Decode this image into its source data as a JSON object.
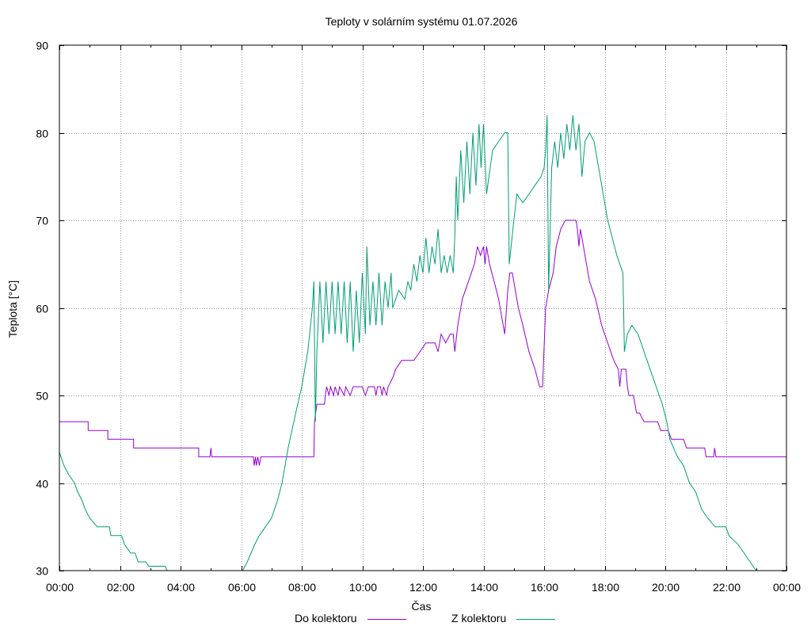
{
  "chart_data": {
    "type": "line",
    "title": "Teploty v solárním systému 01.07.2026",
    "xlabel": "Čas",
    "ylabel": "Teplota [°C]",
    "xlim": [
      0,
      24
    ],
    "ylim": [
      30,
      90
    ],
    "x_tick_labels": [
      "00:00",
      "02:00",
      "04:00",
      "06:00",
      "08:00",
      "10:00",
      "12:00",
      "14:00",
      "16:00",
      "18:00",
      "20:00",
      "22:00",
      "00:00"
    ],
    "y_ticks": [
      30,
      40,
      50,
      60,
      70,
      80,
      90
    ],
    "grid": true,
    "legend_position": "bottom",
    "series": [
      {
        "name": "Do kolektoru",
        "color": "#9400d3",
        "points": [
          [
            0,
            47
          ],
          [
            0.95,
            47
          ],
          [
            0.95,
            46
          ],
          [
            1.6,
            46
          ],
          [
            1.6,
            45
          ],
          [
            2.45,
            45
          ],
          [
            2.45,
            44
          ],
          [
            4.6,
            44
          ],
          [
            4.6,
            43
          ],
          [
            4.97,
            43
          ],
          [
            5.0,
            44
          ],
          [
            5.03,
            43
          ],
          [
            6.4,
            43
          ],
          [
            6.43,
            42
          ],
          [
            6.47,
            43
          ],
          [
            6.5,
            42
          ],
          [
            6.55,
            43
          ],
          [
            6.6,
            42
          ],
          [
            6.65,
            43
          ],
          [
            8.4,
            43
          ],
          [
            8.42,
            47
          ],
          [
            8.5,
            49
          ],
          [
            8.75,
            49
          ],
          [
            8.78,
            50
          ],
          [
            8.82,
            51
          ],
          [
            8.9,
            50
          ],
          [
            8.95,
            51
          ],
          [
            9.05,
            50
          ],
          [
            9.1,
            51
          ],
          [
            9.2,
            50
          ],
          [
            9.25,
            51
          ],
          [
            9.4,
            50
          ],
          [
            9.45,
            51
          ],
          [
            9.6,
            50
          ],
          [
            9.7,
            51
          ],
          [
            10.0,
            51
          ],
          [
            10.1,
            50
          ],
          [
            10.2,
            51
          ],
          [
            10.4,
            51
          ],
          [
            10.45,
            50
          ],
          [
            10.5,
            51
          ],
          [
            10.6,
            51
          ],
          [
            10.65,
            50
          ],
          [
            10.7,
            51
          ],
          [
            10.8,
            50
          ],
          [
            10.85,
            51
          ],
          [
            11.0,
            52
          ],
          [
            11.1,
            53
          ],
          [
            11.3,
            54
          ],
          [
            11.7,
            54
          ],
          [
            11.9,
            55
          ],
          [
            12.1,
            56
          ],
          [
            12.4,
            56
          ],
          [
            12.5,
            55
          ],
          [
            12.6,
            57
          ],
          [
            12.75,
            56
          ],
          [
            12.9,
            57
          ],
          [
            13.0,
            57
          ],
          [
            13.05,
            55
          ],
          [
            13.15,
            58
          ],
          [
            13.3,
            61
          ],
          [
            13.5,
            63
          ],
          [
            13.7,
            65
          ],
          [
            13.8,
            67
          ],
          [
            13.9,
            66
          ],
          [
            14.0,
            67
          ],
          [
            14.05,
            65
          ],
          [
            14.1,
            67
          ],
          [
            14.2,
            65
          ],
          [
            14.35,
            63
          ],
          [
            14.5,
            61
          ],
          [
            14.6,
            59
          ],
          [
            14.7,
            57
          ],
          [
            14.8,
            62
          ],
          [
            14.87,
            64
          ],
          [
            14.95,
            64
          ],
          [
            15.05,
            62
          ],
          [
            15.15,
            60
          ],
          [
            15.3,
            58
          ],
          [
            15.5,
            55
          ],
          [
            15.6,
            54
          ],
          [
            15.7,
            53
          ],
          [
            15.85,
            51
          ],
          [
            15.95,
            51
          ],
          [
            16.05,
            60
          ],
          [
            16.15,
            62
          ],
          [
            16.3,
            64
          ],
          [
            16.4,
            67
          ],
          [
            16.55,
            69
          ],
          [
            16.7,
            70
          ],
          [
            17.05,
            70
          ],
          [
            17.1,
            69
          ],
          [
            17.15,
            67
          ],
          [
            17.2,
            69
          ],
          [
            17.25,
            68
          ],
          [
            17.35,
            66
          ],
          [
            17.5,
            63
          ],
          [
            17.7,
            61
          ],
          [
            17.9,
            58
          ],
          [
            18.1,
            56
          ],
          [
            18.3,
            54
          ],
          [
            18.45,
            53
          ],
          [
            18.5,
            51
          ],
          [
            18.55,
            53
          ],
          [
            18.7,
            53
          ],
          [
            18.75,
            51
          ],
          [
            18.8,
            50
          ],
          [
            18.95,
            50
          ],
          [
            19.05,
            48
          ],
          [
            19.15,
            48
          ],
          [
            19.3,
            47
          ],
          [
            19.75,
            47
          ],
          [
            19.85,
            46
          ],
          [
            20.1,
            46
          ],
          [
            20.2,
            45
          ],
          [
            20.6,
            45
          ],
          [
            20.7,
            44
          ],
          [
            21.3,
            44
          ],
          [
            21.35,
            43
          ],
          [
            21.6,
            43
          ],
          [
            21.63,
            44
          ],
          [
            21.67,
            43
          ],
          [
            24,
            43
          ]
        ]
      },
      {
        "name": "Z kolektoru",
        "color": "#009e73",
        "points": [
          [
            0,
            43.5
          ],
          [
            0.15,
            42
          ],
          [
            0.3,
            41
          ],
          [
            0.5,
            40
          ],
          [
            0.6,
            39
          ],
          [
            0.75,
            38
          ],
          [
            0.85,
            37
          ],
          [
            1.0,
            36
          ],
          [
            1.25,
            35
          ],
          [
            1.65,
            35
          ],
          [
            1.7,
            34
          ],
          [
            2.05,
            34
          ],
          [
            2.15,
            33
          ],
          [
            2.35,
            32
          ],
          [
            2.5,
            32
          ],
          [
            2.6,
            31
          ],
          [
            2.85,
            31
          ],
          [
            2.95,
            30.5
          ],
          [
            3.5,
            30.5
          ],
          [
            3.55,
            30
          ],
          [
            6.05,
            30
          ],
          [
            6.2,
            31
          ],
          [
            6.45,
            33
          ],
          [
            6.6,
            34
          ],
          [
            6.8,
            35
          ],
          [
            7.0,
            36
          ],
          [
            7.2,
            38
          ],
          [
            7.35,
            40
          ],
          [
            7.55,
            44
          ],
          [
            7.8,
            48
          ],
          [
            8.0,
            51
          ],
          [
            8.2,
            55
          ],
          [
            8.35,
            60
          ],
          [
            8.4,
            63
          ],
          [
            8.45,
            47
          ],
          [
            8.5,
            55
          ],
          [
            8.6,
            63
          ],
          [
            8.7,
            56
          ],
          [
            8.8,
            63
          ],
          [
            8.9,
            57
          ],
          [
            9.0,
            63
          ],
          [
            9.1,
            57
          ],
          [
            9.2,
            63
          ],
          [
            9.3,
            57
          ],
          [
            9.4,
            63
          ],
          [
            9.5,
            56
          ],
          [
            9.6,
            63
          ],
          [
            9.7,
            55
          ],
          [
            9.8,
            62
          ],
          [
            9.9,
            56
          ],
          [
            10.0,
            64
          ],
          [
            10.1,
            57
          ],
          [
            10.15,
            67
          ],
          [
            10.25,
            58
          ],
          [
            10.35,
            63
          ],
          [
            10.45,
            58
          ],
          [
            10.55,
            64
          ],
          [
            10.65,
            58
          ],
          [
            10.75,
            63
          ],
          [
            10.85,
            60
          ],
          [
            10.95,
            64
          ],
          [
            11.0,
            60
          ],
          [
            11.2,
            62
          ],
          [
            11.4,
            61
          ],
          [
            11.5,
            63
          ],
          [
            11.6,
            62
          ],
          [
            11.7,
            65
          ],
          [
            11.8,
            63
          ],
          [
            11.9,
            66
          ],
          [
            12.0,
            64
          ],
          [
            12.1,
            68
          ],
          [
            12.2,
            64
          ],
          [
            12.3,
            67
          ],
          [
            12.4,
            65
          ],
          [
            12.5,
            69
          ],
          [
            12.6,
            64
          ],
          [
            12.7,
            66
          ],
          [
            12.8,
            64
          ],
          [
            12.9,
            66
          ],
          [
            13.0,
            64
          ],
          [
            13.05,
            68
          ],
          [
            13.1,
            75
          ],
          [
            13.15,
            70
          ],
          [
            13.25,
            78
          ],
          [
            13.35,
            72
          ],
          [
            13.45,
            79
          ],
          [
            13.55,
            73
          ],
          [
            13.65,
            80
          ],
          [
            13.75,
            74
          ],
          [
            13.85,
            81
          ],
          [
            13.92,
            76
          ],
          [
            14.0,
            81
          ],
          [
            14.1,
            73
          ],
          [
            14.3,
            78
          ],
          [
            14.5,
            79
          ],
          [
            14.7,
            80
          ],
          [
            14.8,
            80
          ],
          [
            14.85,
            65
          ],
          [
            15.0,
            70
          ],
          [
            15.1,
            73
          ],
          [
            15.3,
            72
          ],
          [
            15.5,
            73
          ],
          [
            15.7,
            74
          ],
          [
            15.9,
            75
          ],
          [
            16.0,
            76
          ],
          [
            16.05,
            78
          ],
          [
            16.1,
            82
          ],
          [
            16.15,
            62
          ],
          [
            16.25,
            76
          ],
          [
            16.35,
            79
          ],
          [
            16.45,
            76
          ],
          [
            16.55,
            80
          ],
          [
            16.65,
            77
          ],
          [
            16.75,
            81
          ],
          [
            16.85,
            78
          ],
          [
            16.95,
            82
          ],
          [
            17.05,
            78
          ],
          [
            17.15,
            81
          ],
          [
            17.25,
            75
          ],
          [
            17.35,
            79
          ],
          [
            17.5,
            80
          ],
          [
            17.65,
            79
          ],
          [
            17.8,
            76
          ],
          [
            17.95,
            73
          ],
          [
            18.1,
            70
          ],
          [
            18.25,
            68
          ],
          [
            18.4,
            66
          ],
          [
            18.6,
            64
          ],
          [
            18.65,
            55
          ],
          [
            18.75,
            57
          ],
          [
            18.9,
            58
          ],
          [
            19.1,
            57
          ],
          [
            19.3,
            55
          ],
          [
            19.5,
            53
          ],
          [
            19.7,
            51
          ],
          [
            19.9,
            49
          ],
          [
            20.05,
            47
          ],
          [
            20.15,
            45
          ],
          [
            20.4,
            43
          ],
          [
            20.6,
            42
          ],
          [
            20.8,
            40
          ],
          [
            21.0,
            39
          ],
          [
            21.2,
            37
          ],
          [
            21.4,
            36
          ],
          [
            21.65,
            35
          ],
          [
            22.0,
            35
          ],
          [
            22.1,
            34
          ],
          [
            22.4,
            33
          ],
          [
            22.6,
            32
          ],
          [
            22.8,
            31
          ],
          [
            23.0,
            30
          ],
          [
            23.05,
            30
          ]
        ]
      }
    ]
  }
}
